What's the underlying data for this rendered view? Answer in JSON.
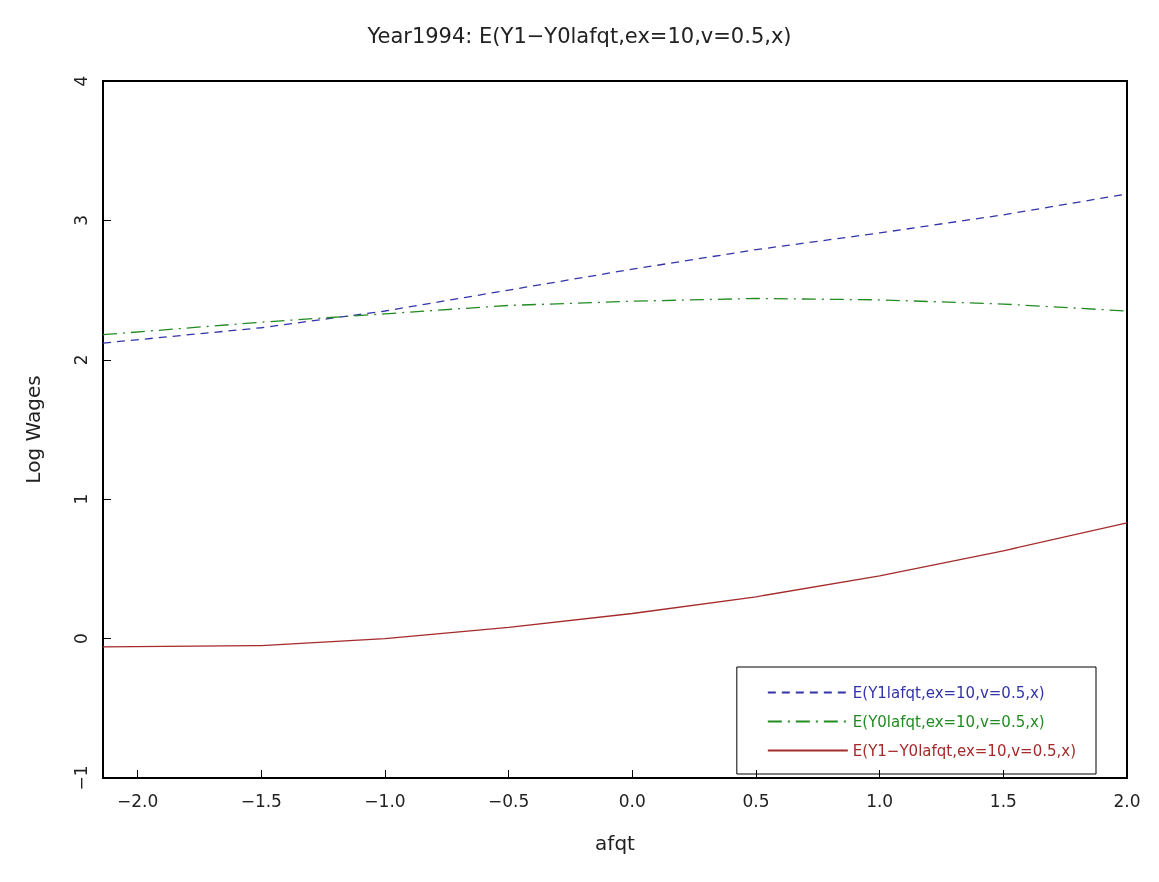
{
  "chart_data": {
    "type": "line",
    "title": "Year1994: E(Y1−Y0lafqt,ex=10,v=0.5,x)",
    "xlabel": "afqt",
    "ylabel": "Log Wages",
    "x": [
      -2.14,
      -1.5,
      -1.0,
      -0.5,
      0.0,
      0.5,
      1.0,
      1.5,
      2.0
    ],
    "series": [
      {
        "name": "E(Y1lafqt,ex=10,v=0.5,x)",
        "color": "#3333aa",
        "line_style": "dashed",
        "values": [
          2.12,
          2.23,
          2.35,
          2.5,
          2.65,
          2.79,
          2.91,
          3.04,
          3.19
        ]
      },
      {
        "name": "E(Y0lafqt,ex=10,v=0.5,x)",
        "color": "#228b22",
        "line_style": "dashdot",
        "values": [
          2.18,
          2.27,
          2.33,
          2.39,
          2.42,
          2.44,
          2.43,
          2.4,
          2.35
        ]
      },
      {
        "name": "E(Y1−Y0lafqt,ex=10,v=0.5,x)",
        "color": "#a52a2a",
        "line_style": "solid",
        "values": [
          -0.06,
          -0.05,
          0.0,
          0.08,
          0.18,
          0.3,
          0.45,
          0.63,
          0.83
        ]
      }
    ],
    "xlim": [
      -2.14,
      2.0
    ],
    "xticks": [
      {
        "value": -2.0,
        "label": "−2.0"
      },
      {
        "value": -1.5,
        "label": "−1.5"
      },
      {
        "value": -1.0,
        "label": "−1.0"
      },
      {
        "value": -0.5,
        "label": "−0.5"
      },
      {
        "value": 0.0,
        "label": "0.0"
      },
      {
        "value": 0.5,
        "label": "0.5"
      },
      {
        "value": 1.0,
        "label": "1.0"
      },
      {
        "value": 1.5,
        "label": "1.5"
      },
      {
        "value": 2.0,
        "label": "2.0"
      }
    ],
    "ylim": [
      -1,
      4
    ],
    "yticks": [
      {
        "value": -1,
        "label": "−1"
      },
      0,
      1,
      2,
      3,
      4
    ],
    "grid": false,
    "legend": "bottom right",
    "marker": "none"
  }
}
